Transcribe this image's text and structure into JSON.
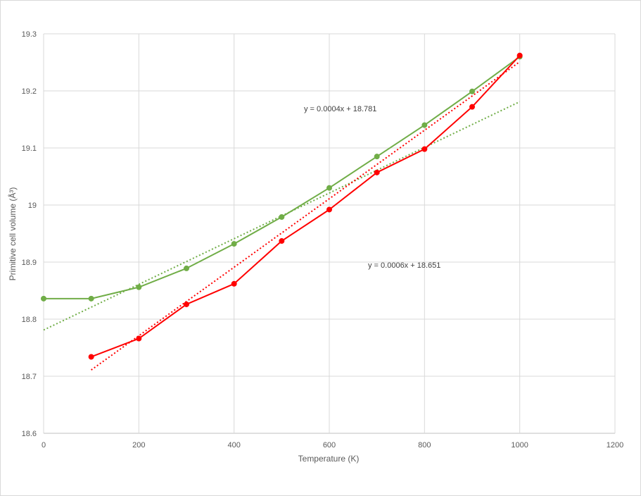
{
  "chart_data": {
    "type": "line",
    "title": "",
    "xlabel": "Temperature  (K)",
    "ylabel": "Primitive cell volume (Å³)",
    "xlim": [
      0,
      1200
    ],
    "ylim": [
      18.6,
      19.3
    ],
    "x_ticks": [
      "0",
      "200",
      "400",
      "600",
      "800",
      "1000",
      "1200"
    ],
    "y_ticks": [
      "18.6",
      "18.7",
      "18.8",
      "18.9",
      "19",
      "19.1",
      "19.2",
      "19.3"
    ],
    "grid": true,
    "legend": "none",
    "series": [
      {
        "color": "#70ad47",
        "x": [
          0,
          100,
          200,
          300,
          400,
          500,
          600,
          700,
          800,
          900,
          1000
        ],
        "y": [
          18.836,
          18.836,
          18.856,
          18.889,
          18.932,
          18.979,
          19.03,
          19.085,
          19.14,
          19.199,
          19.26
        ],
        "trendline": {
          "slope": 0.0004,
          "intercept": 18.781,
          "x_range": [
            0,
            1000
          ],
          "equation": "y = 0.0004x + 18.781"
        }
      },
      {
        "color": "#ff0000",
        "x": [
          100,
          200,
          300,
          400,
          500,
          600,
          700,
          800,
          900,
          1000
        ],
        "y": [
          18.734,
          18.766,
          18.826,
          18.862,
          18.937,
          18.992,
          19.057,
          19.098,
          19.172,
          19.262
        ],
        "trendline": {
          "slope": 0.0006,
          "intercept": 18.651,
          "x_range": [
            100,
            1000
          ],
          "equation": "y = 0.0006x + 18.651"
        }
      }
    ]
  }
}
